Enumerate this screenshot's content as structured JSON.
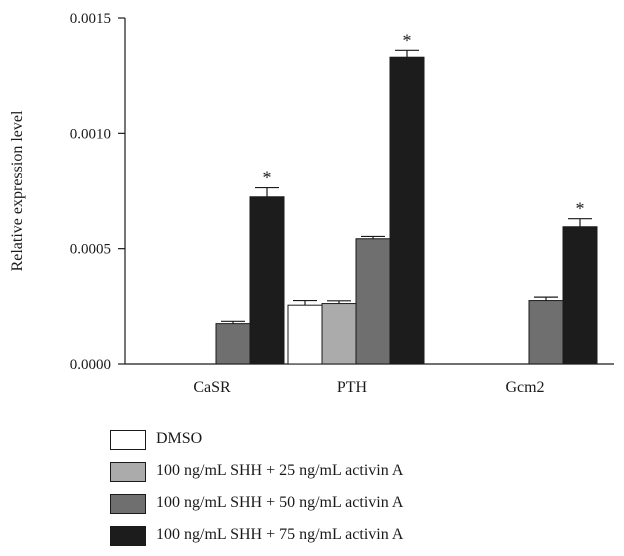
{
  "chart_data": {
    "type": "bar",
    "title": "",
    "xlabel": "",
    "ylabel": "Relative expression level",
    "ylim": [
      0,
      0.0015
    ],
    "yticks": [
      "0.0000",
      "0.0005",
      "0.0010",
      "0.0015"
    ],
    "ytick_values": [
      0,
      0.0005,
      0.001,
      0.0015
    ],
    "categories": [
      "CaSR",
      "PTH",
      "Gcm2"
    ],
    "grid": false,
    "legend_position": "bottom",
    "series": [
      {
        "name": "DMSO",
        "color": "#ffffff",
        "values": [
          0,
          0.000255,
          0
        ],
        "errors": [
          0,
          2e-05,
          0
        ],
        "stars": [
          false,
          false,
          false
        ]
      },
      {
        "name": "100 ng/mL SHH + 25 ng/mL activin A",
        "color": "#ababab",
        "values": [
          0,
          0.000262,
          0
        ],
        "errors": [
          0,
          1.2e-05,
          0
        ],
        "stars": [
          false,
          false,
          false
        ]
      },
      {
        "name": "100 ng/mL SHH + 50 ng/mL activin A",
        "color": "#6f6f6f",
        "values": [
          0.000175,
          0.000543,
          0.000275
        ],
        "errors": [
          1e-05,
          1e-05,
          1.5e-05
        ],
        "stars": [
          false,
          false,
          false
        ]
      },
      {
        "name": "100 ng/mL SHH + 75 ng/mL activin A",
        "color": "#1c1c1c",
        "values": [
          0.000725,
          0.00133,
          0.000595
        ],
        "errors": [
          4e-05,
          3e-05,
          3.5e-05
        ],
        "stars": [
          true,
          true,
          true
        ]
      }
    ],
    "significance_marker": "*"
  }
}
